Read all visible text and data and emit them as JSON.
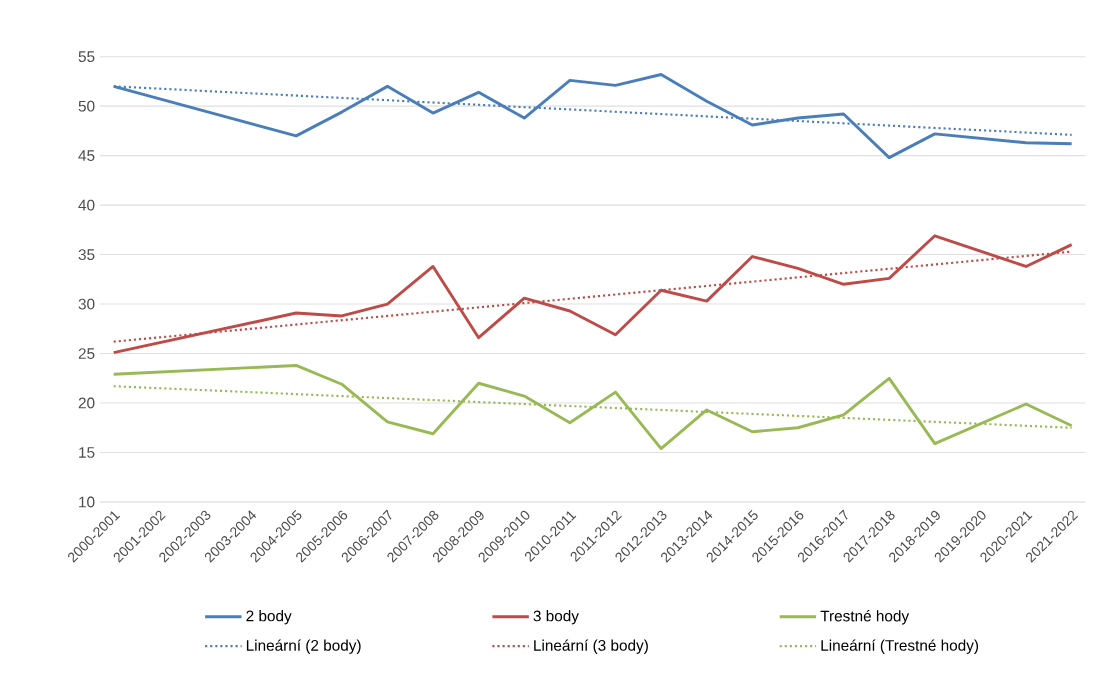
{
  "chart_data": {
    "type": "line",
    "categories": [
      "2000-2001",
      "2001-2002",
      "2002-2003",
      "2003-2004",
      "2004-2005",
      "2005-2006",
      "2006-2007",
      "2007-2008",
      "2008-2009",
      "2009-2010",
      "2010-2011",
      "2011-2012",
      "2012-2013",
      "2013-2014",
      "2014-2015",
      "2015-2016",
      "2016-2017",
      "2017-2018",
      "2018-2019",
      "2019-2020",
      "2020-2021",
      "2021-2022"
    ],
    "series": [
      {
        "name": "2 body",
        "color": "#4a7ebb",
        "line_style": "solid",
        "values": [
          52.0,
          null,
          null,
          null,
          47.0,
          49.4,
          52.0,
          49.3,
          51.4,
          48.8,
          52.6,
          52.1,
          53.2,
          50.5,
          48.1,
          48.8,
          49.2,
          44.8,
          47.2,
          null,
          46.3,
          46.2
        ]
      },
      {
        "name": "3 body",
        "color": "#be4b48",
        "line_style": "solid",
        "values": [
          25.1,
          null,
          null,
          null,
          29.1,
          28.8,
          30.0,
          33.8,
          26.6,
          30.6,
          29.3,
          26.9,
          31.4,
          30.3,
          34.8,
          33.6,
          32.0,
          32.6,
          36.9,
          null,
          33.8,
          36.0
        ]
      },
      {
        "name": "Trestné hody",
        "color": "#98b954",
        "line_style": "solid",
        "values": [
          22.9,
          null,
          null,
          null,
          23.8,
          21.9,
          18.1,
          16.9,
          22.0,
          20.7,
          18.0,
          21.1,
          15.4,
          19.3,
          17.1,
          17.5,
          18.8,
          22.5,
          15.9,
          null,
          19.9,
          17.7
        ]
      },
      {
        "name": "Lineární (2 body)",
        "color": "#4a7ebb",
        "line_style": "dotted",
        "values": [
          52.0,
          null,
          null,
          null,
          null,
          null,
          null,
          null,
          null,
          null,
          null,
          null,
          null,
          null,
          null,
          null,
          null,
          null,
          null,
          null,
          null,
          47.1
        ]
      },
      {
        "name": "Lineární (3 body)",
        "color": "#be4b48",
        "line_style": "dotted",
        "values": [
          26.2,
          null,
          null,
          null,
          null,
          null,
          null,
          null,
          null,
          null,
          null,
          null,
          null,
          null,
          null,
          null,
          null,
          null,
          null,
          null,
          null,
          35.3
        ]
      },
      {
        "name": "Lineární (Trestné hody)",
        "color": "#98b954",
        "line_style": "dotted",
        "values": [
          21.7,
          null,
          null,
          null,
          null,
          null,
          null,
          null,
          null,
          null,
          null,
          null,
          null,
          null,
          null,
          null,
          null,
          null,
          null,
          null,
          null,
          17.5
        ]
      }
    ],
    "ylim": [
      10,
      55
    ],
    "yticks": [
      10,
      15,
      20,
      25,
      30,
      35,
      40,
      45,
      50,
      55
    ],
    "grid": "y",
    "legend": "bottom"
  }
}
